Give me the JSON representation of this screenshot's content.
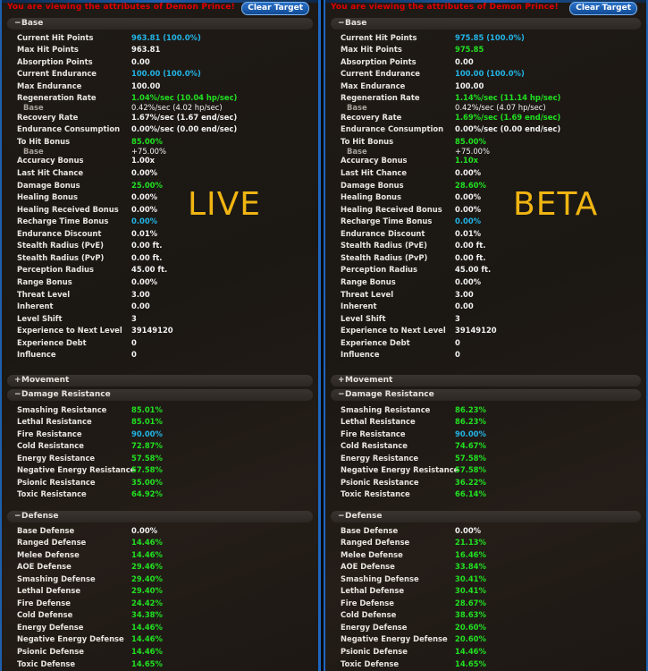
{
  "panels": [
    {
      "id": "live",
      "title": "You are viewing the attributes of Demon Prince!",
      "clear_target_label": "Clear Target",
      "overlay_label": "LIVE",
      "sections": {
        "base": {
          "sign": "−",
          "label": "Base",
          "rows": [
            {
              "label": "Current Hit Points",
              "value": "963.81 (100.0%)",
              "color": "cyan"
            },
            {
              "label": "Max Hit Points",
              "value": "963.81",
              "color": "white"
            },
            {
              "label": "Absorption Points",
              "value": "0.00",
              "color": "white"
            },
            {
              "label": "Current Endurance",
              "value": "100.00 (100.0%)",
              "color": "cyan"
            },
            {
              "label": "Max Endurance",
              "value": "100.00",
              "color": "white"
            },
            {
              "label": "Regeneration Rate",
              "value": "1.04%/sec  (10.04 hp/sec)",
              "color": "green"
            },
            {
              "label": "Base",
              "value": "0.42%/sec  (4.02 hp/sec)",
              "color": "white",
              "sub": true
            },
            {
              "label": "Recovery Rate",
              "value": "1.67%/sec  (1.67 end/sec)",
              "color": "white"
            },
            {
              "label": "Endurance Consumption",
              "value": "0.00%/sec  (0.00 end/sec)",
              "color": "white"
            },
            {
              "label": "To Hit Bonus",
              "value": "85.00%",
              "color": "green"
            },
            {
              "label": "Base",
              "value": "+75.00%",
              "color": "white",
              "sub": true
            },
            {
              "label": "Accuracy Bonus",
              "value": "1.00x",
              "color": "white"
            },
            {
              "label": "Last Hit Chance",
              "value": "0.00%",
              "color": "white"
            },
            {
              "label": "Damage Bonus",
              "value": "25.00%",
              "color": "green"
            },
            {
              "label": "Healing Bonus",
              "value": "0.00%",
              "color": "white"
            },
            {
              "label": "Healing Received Bonus",
              "value": "0.00%",
              "color": "white"
            },
            {
              "label": "Recharge Time Bonus",
              "value": "0.00%",
              "color": "cyan"
            },
            {
              "label": "Endurance Discount",
              "value": "0.01%",
              "color": "white"
            },
            {
              "label": "Stealth Radius (PvE)",
              "value": "0.00 ft.",
              "color": "white"
            },
            {
              "label": "Stealth Radius (PvP)",
              "value": "0.00 ft.",
              "color": "white"
            },
            {
              "label": "Perception Radius",
              "value": "45.00 ft.",
              "color": "white"
            },
            {
              "label": "Range Bonus",
              "value": "0.00%",
              "color": "white"
            },
            {
              "label": "Threat Level",
              "value": "3.00",
              "color": "white"
            },
            {
              "label": "Inherent",
              "value": "0.00",
              "color": "white"
            },
            {
              "label": "Level Shift",
              "value": "3",
              "color": "white"
            },
            {
              "label": "Experience to Next Level",
              "value": "39149120",
              "color": "white"
            },
            {
              "label": "Experience Debt",
              "value": "0",
              "color": "white"
            },
            {
              "label": "Influence",
              "value": "0",
              "color": "white"
            }
          ]
        },
        "movement": {
          "sign": "+",
          "label": "Movement"
        },
        "damage_resistance": {
          "sign": "−",
          "label": "Damage Resistance",
          "rows": [
            {
              "label": "Smashing Resistance",
              "value": "85.01%",
              "color": "green"
            },
            {
              "label": "Lethal Resistance",
              "value": "85.01%",
              "color": "green"
            },
            {
              "label": "Fire Resistance",
              "value": "90.00%",
              "color": "cyan"
            },
            {
              "label": "Cold Resistance",
              "value": "72.87%",
              "color": "green"
            },
            {
              "label": "Energy Resistance",
              "value": "57.58%",
              "color": "green"
            },
            {
              "label": "Negative Energy Resistance",
              "value": "57.58%",
              "color": "green"
            },
            {
              "label": "Psionic Resistance",
              "value": "35.00%",
              "color": "green"
            },
            {
              "label": "Toxic Resistance",
              "value": "64.92%",
              "color": "green"
            }
          ]
        },
        "defense": {
          "sign": "−",
          "label": "Defense",
          "rows": [
            {
              "label": "Base Defense",
              "value": "0.00%",
              "color": "white"
            },
            {
              "label": "Ranged Defense",
              "value": "14.46%",
              "color": "green"
            },
            {
              "label": "Melee Defense",
              "value": "14.46%",
              "color": "green"
            },
            {
              "label": "AOE Defense",
              "value": "29.46%",
              "color": "green"
            },
            {
              "label": "Smashing Defense",
              "value": "29.40%",
              "color": "green"
            },
            {
              "label": "Lethal Defense",
              "value": "29.40%",
              "color": "green"
            },
            {
              "label": "Fire Defense",
              "value": "24.42%",
              "color": "green"
            },
            {
              "label": "Cold Defense",
              "value": "34.38%",
              "color": "green"
            },
            {
              "label": "Energy Defense",
              "value": "14.46%",
              "color": "green"
            },
            {
              "label": "Negative Energy Defense",
              "value": "14.46%",
              "color": "green"
            },
            {
              "label": "Psionic Defense",
              "value": "14.46%",
              "color": "green"
            },
            {
              "label": "Toxic Defense",
              "value": "14.65%",
              "color": "green"
            }
          ]
        }
      }
    },
    {
      "id": "beta",
      "title": "You are viewing the attributes of Demon Prince!",
      "clear_target_label": "Clear Target",
      "overlay_label": "BETA",
      "sections": {
        "base": {
          "sign": "−",
          "label": "Base",
          "rows": [
            {
              "label": "Current Hit Points",
              "value": "975.85 (100.0%)",
              "color": "cyan"
            },
            {
              "label": "Max Hit Points",
              "value": "975.85",
              "color": "green"
            },
            {
              "label": "Absorption Points",
              "value": "0.00",
              "color": "white"
            },
            {
              "label": "Current Endurance",
              "value": "100.00 (100.0%)",
              "color": "cyan"
            },
            {
              "label": "Max Endurance",
              "value": "100.00",
              "color": "white"
            },
            {
              "label": "Regeneration Rate",
              "value": "1.14%/sec  (11.14 hp/sec)",
              "color": "green"
            },
            {
              "label": "Base",
              "value": "0.42%/sec  (4.07 hp/sec)",
              "color": "white",
              "sub": true
            },
            {
              "label": "Recovery Rate",
              "value": "1.69%/sec  (1.69 end/sec)",
              "color": "green"
            },
            {
              "label": "Endurance Consumption",
              "value": "0.00%/sec  (0.00 end/sec)",
              "color": "white"
            },
            {
              "label": "To Hit Bonus",
              "value": "85.00%",
              "color": "green"
            },
            {
              "label": "Base",
              "value": "+75.00%",
              "color": "white",
              "sub": true
            },
            {
              "label": "Accuracy Bonus",
              "value": "1.10x",
              "color": "green"
            },
            {
              "label": "Last Hit Chance",
              "value": "0.00%",
              "color": "white"
            },
            {
              "label": "Damage Bonus",
              "value": "28.60%",
              "color": "green"
            },
            {
              "label": "Healing Bonus",
              "value": "0.00%",
              "color": "white"
            },
            {
              "label": "Healing Received Bonus",
              "value": "0.00%",
              "color": "white"
            },
            {
              "label": "Recharge Time Bonus",
              "value": "0.00%",
              "color": "cyan"
            },
            {
              "label": "Endurance Discount",
              "value": "0.01%",
              "color": "white"
            },
            {
              "label": "Stealth Radius (PvE)",
              "value": "0.00 ft.",
              "color": "white"
            },
            {
              "label": "Stealth Radius (PvP)",
              "value": "0.00 ft.",
              "color": "white"
            },
            {
              "label": "Perception Radius",
              "value": "45.00 ft.",
              "color": "white"
            },
            {
              "label": "Range Bonus",
              "value": "0.00%",
              "color": "white"
            },
            {
              "label": "Threat Level",
              "value": "3.00",
              "color": "white"
            },
            {
              "label": "Inherent",
              "value": "0.00",
              "color": "white"
            },
            {
              "label": "Level Shift",
              "value": "3",
              "color": "white"
            },
            {
              "label": "Experience to Next Level",
              "value": "39149120",
              "color": "white"
            },
            {
              "label": "Experience Debt",
              "value": "0",
              "color": "white"
            },
            {
              "label": "Influence",
              "value": "0",
              "color": "white"
            }
          ]
        },
        "movement": {
          "sign": "+",
          "label": "Movement"
        },
        "damage_resistance": {
          "sign": "−",
          "label": "Damage Resistance",
          "rows": [
            {
              "label": "Smashing Resistance",
              "value": "86.23%",
              "color": "green"
            },
            {
              "label": "Lethal Resistance",
              "value": "86.23%",
              "color": "green"
            },
            {
              "label": "Fire Resistance",
              "value": "90.00%",
              "color": "cyan"
            },
            {
              "label": "Cold Resistance",
              "value": "74.67%",
              "color": "green"
            },
            {
              "label": "Energy Resistance",
              "value": "57.58%",
              "color": "green"
            },
            {
              "label": "Negative Energy Resistance",
              "value": "57.58%",
              "color": "green"
            },
            {
              "label": "Psionic Resistance",
              "value": "36.22%",
              "color": "green"
            },
            {
              "label": "Toxic Resistance",
              "value": "66.14%",
              "color": "green"
            }
          ]
        },
        "defense": {
          "sign": "−",
          "label": "Defense",
          "rows": [
            {
              "label": "Base Defense",
              "value": "0.00%",
              "color": "white"
            },
            {
              "label": "Ranged Defense",
              "value": "21.13%",
              "color": "green"
            },
            {
              "label": "Melee Defense",
              "value": "16.46%",
              "color": "green"
            },
            {
              "label": "AOE Defense",
              "value": "33.84%",
              "color": "green"
            },
            {
              "label": "Smashing Defense",
              "value": "30.41%",
              "color": "green"
            },
            {
              "label": "Lethal Defense",
              "value": "30.41%",
              "color": "green"
            },
            {
              "label": "Fire Defense",
              "value": "28.67%",
              "color": "green"
            },
            {
              "label": "Cold Defense",
              "value": "38.63%",
              "color": "green"
            },
            {
              "label": "Energy Defense",
              "value": "20.60%",
              "color": "green"
            },
            {
              "label": "Negative Energy Defense",
              "value": "20.60%",
              "color": "green"
            },
            {
              "label": "Psionic Defense",
              "value": "14.46%",
              "color": "green"
            },
            {
              "label": "Toxic Defense",
              "value": "14.65%",
              "color": "green"
            }
          ]
        }
      }
    }
  ],
  "colors": {
    "white": "#f2f2f2",
    "green": "#21e021",
    "cyan": "#22b4e6",
    "title_red": "#e00000",
    "overlay_amber": "#f0b512",
    "frame_blue": "#1e66c0"
  }
}
